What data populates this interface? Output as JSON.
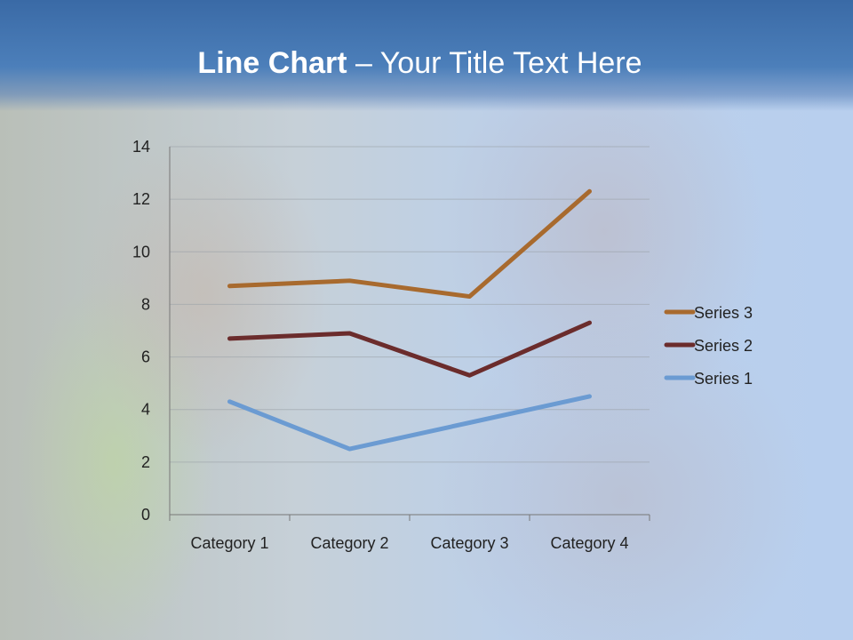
{
  "slide": {
    "title_bold": "Line Chart",
    "title_rest": " – Your Title Text Here"
  },
  "chart_data": {
    "type": "line",
    "stacked": true,
    "categories": [
      "Category 1",
      "Category 2",
      "Category 3",
      "Category 4"
    ],
    "series": [
      {
        "name": "Series 1",
        "values": [
          4.3,
          2.5,
          3.5,
          4.5
        ],
        "color": "#6b9bd2"
      },
      {
        "name": "Series 2",
        "values": [
          2.4,
          4.4,
          1.8,
          2.8
        ],
        "color": "#6b2c2c"
      },
      {
        "name": "Series 3",
        "values": [
          2,
          2,
          3,
          5
        ],
        "color": "#a86a2e"
      }
    ],
    "ylim": [
      0,
      14
    ],
    "yticks": [
      0,
      2,
      4,
      6,
      8,
      10,
      12,
      14
    ],
    "grid": true,
    "legend": "right",
    "legend_order": [
      "Series 3",
      "Series 2",
      "Series 1"
    ]
  }
}
